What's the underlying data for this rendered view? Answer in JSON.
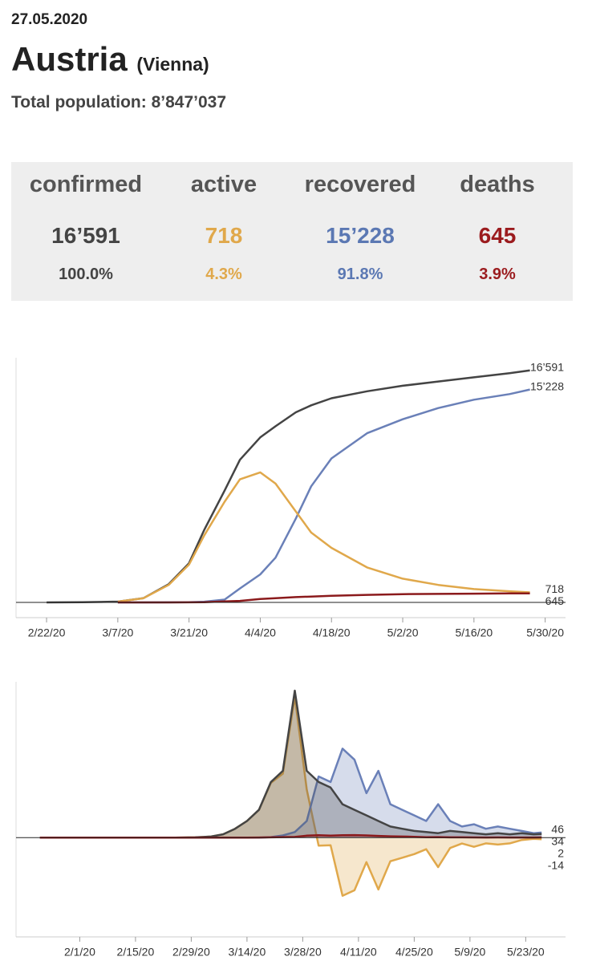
{
  "header": {
    "date": "27.05.2020",
    "country": "Austria",
    "region": "(Vienna)",
    "population": "Total population: 8’847’037"
  },
  "stats": {
    "columns": [
      {
        "label": "confirmed",
        "value": "16’591",
        "percent": "100.0%",
        "color": "#444444"
      },
      {
        "label": "active",
        "value": "718",
        "percent": "4.3%",
        "color": "#e0a84b"
      },
      {
        "label": "recovered",
        "value": "15’228",
        "percent": "91.8%",
        "color": "#5b78b3"
      },
      {
        "label": "deaths",
        "value": "645",
        "percent": "3.9%",
        "color": "#9b1b1e"
      }
    ]
  },
  "chart_data": [
    {
      "type": "line",
      "x": [
        "2/22/20",
        "2/29/20",
        "3/7/20",
        "3/12/20",
        "3/17/20",
        "3/21/20",
        "3/24/20",
        "3/28/20",
        "3/31/20",
        "4/4/20",
        "4/7/20",
        "4/11/20",
        "4/14/20",
        "4/18/20",
        "4/25/20",
        "5/2/20",
        "5/9/20",
        "5/16/20",
        "5/23/20",
        "5/27/20"
      ],
      "xlim": [
        "2/16/20",
        "6/3/20"
      ],
      "xticks": [
        "2/22/20",
        "3/7/20",
        "3/21/20",
        "4/4/20",
        "4/18/20",
        "5/2/20",
        "5/16/20",
        "5/30/20"
      ],
      "ylim": [
        0,
        17500
      ],
      "series": [
        {
          "name": "confirmed",
          "color": "#444444",
          "values": [
            2,
            10,
            60,
            300,
            1300,
            2800,
            5200,
            8000,
            10200,
            11800,
            12600,
            13600,
            14100,
            14600,
            15100,
            15500,
            15800,
            16100,
            16400,
            16591
          ],
          "value_labels": [
            null,
            null,
            null,
            null,
            null,
            null,
            null,
            null,
            null,
            null,
            null,
            null,
            null,
            null,
            null,
            null,
            null,
            null,
            null,
            "16’591"
          ]
        },
        {
          "name": "recovered",
          "color": "#6a80b8",
          "values": [
            null,
            null,
            0,
            0,
            5,
            10,
            50,
            200,
            1000,
            2000,
            3200,
            6000,
            8300,
            10300,
            12100,
            13100,
            13900,
            14500,
            14900,
            15228
          ],
          "value_labels": [
            null,
            null,
            null,
            null,
            null,
            null,
            null,
            null,
            null,
            null,
            null,
            null,
            null,
            null,
            null,
            null,
            null,
            null,
            null,
            "15’228"
          ]
        },
        {
          "name": "active",
          "color": "#e0a84b",
          "values": [
            null,
            null,
            55,
            290,
            1250,
            2700,
            4800,
            7200,
            8800,
            9300,
            8500,
            6500,
            5000,
            3900,
            2500,
            1700,
            1250,
            950,
            800,
            718
          ]
        },
        {
          "name": "deaths",
          "color": "#8b1a1c",
          "values": [
            null,
            null,
            0,
            0,
            1,
            6,
            20,
            70,
            110,
            240,
            300,
            380,
            420,
            470,
            540,
            590,
            610,
            625,
            640,
            645
          ]
        }
      ]
    },
    {
      "type": "area",
      "x": [
        "1/22/20",
        "2/25/20",
        "3/1/20",
        "3/5/20",
        "3/8/20",
        "3/11/20",
        "3/14/20",
        "3/17/20",
        "3/20/20",
        "3/23/20",
        "3/26/20",
        "3/29/20",
        "4/1/20",
        "4/4/20",
        "4/7/20",
        "4/10/20",
        "4/13/20",
        "4/16/20",
        "4/19/20",
        "4/22/20",
        "4/25/20",
        "4/28/20",
        "5/1/20",
        "5/4/20",
        "5/7/20",
        "5/10/20",
        "5/13/20",
        "5/16/20",
        "5/19/20",
        "5/22/20",
        "5/25/20",
        "5/27/20"
      ],
      "xlim": [
        "1/16/20",
        "6/2/20"
      ],
      "xticks": [
        "2/1/20",
        "2/15/20",
        "2/29/20",
        "3/14/20",
        "3/28/20",
        "4/11/20",
        "4/25/20",
        "5/9/20",
        "5/23/20"
      ],
      "ylim": [
        -870,
        1400
      ],
      "series": [
        {
          "name": "active",
          "color": "#e0a84b",
          "values": [
            0,
            0,
            3,
            10,
            30,
            80,
            150,
            249,
            492,
            575,
            1265,
            432,
            -72,
            -68,
            -522,
            -473,
            -220,
            -466,
            -212,
            -180,
            -148,
            -104,
            -265,
            -93,
            -53,
            -82,
            -51,
            -62,
            -51,
            -21,
            -11,
            -14
          ]
        },
        {
          "name": "recovered",
          "color": "#6a80b8",
          "values": [
            0,
            0,
            0,
            0,
            0,
            0,
            0,
            0,
            5,
            20,
            50,
            150,
            550,
            500,
            800,
            700,
            400,
            600,
            300,
            250,
            200,
            150,
            300,
            150,
            100,
            120,
            80,
            100,
            80,
            60,
            40,
            46
          ]
        },
        {
          "name": "confirmed",
          "color": "#444444",
          "values": [
            0,
            0,
            3,
            10,
            30,
            80,
            150,
            250,
            500,
            600,
            1321,
            600,
            500,
            450,
            300,
            250,
            200,
            150,
            100,
            80,
            60,
            50,
            40,
            60,
            50,
            40,
            30,
            40,
            30,
            40,
            30,
            34
          ]
        },
        {
          "name": "deaths",
          "color": "#8b1a1c",
          "values": [
            0,
            0,
            0,
            0,
            0,
            0,
            0,
            1,
            3,
            5,
            6,
            18,
            22,
            18,
            22,
            23,
            20,
            16,
            12,
            10,
            8,
            4,
            5,
            3,
            3,
            2,
            1,
            2,
            1,
            1,
            1,
            2
          ]
        }
      ]
    }
  ]
}
